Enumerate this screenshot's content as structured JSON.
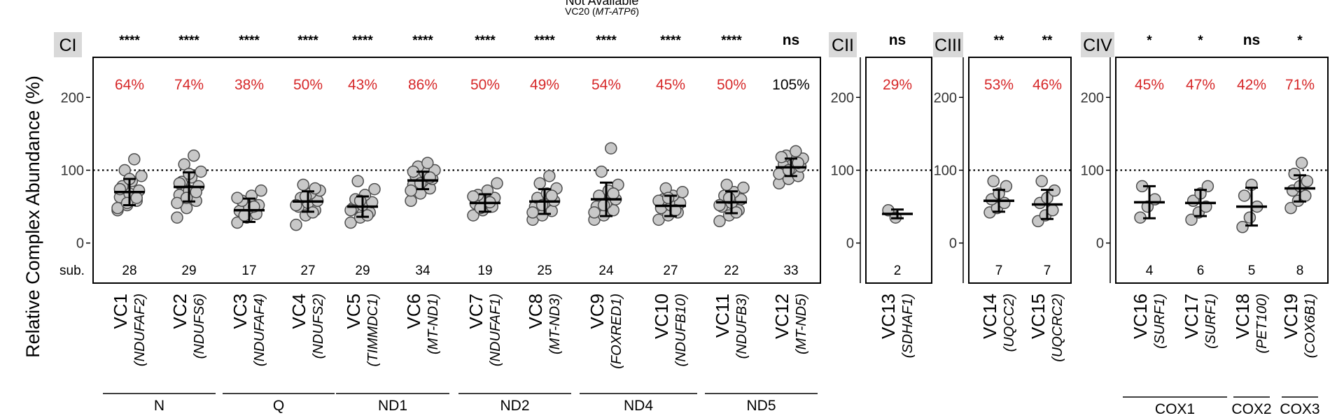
{
  "header": {
    "not_available_title": "Not Available",
    "not_available_subunit": "VC20",
    "not_available_gene": "MT-ATP6"
  },
  "chart_data": {
    "type": "scatter",
    "ylabel": "Relative Complex Abundance (%)",
    "yticks": [
      0,
      100,
      200
    ],
    "reference_line": 100,
    "row_label": "sub.",
    "colors": {
      "point_fill": "#c8c8c8",
      "point_stroke": "#4d4d4d",
      "percent_significant": "#d62728",
      "percent_normal": "#000000",
      "panel_label_bg": "#d9d9d9",
      "reference_line": "#000000"
    },
    "panels": [
      {
        "label": "CI",
        "ylim": [
          -55,
          255
        ],
        "subunits": [
          {
            "name": "VC1",
            "gene": "(NDUFAF2)",
            "sig": "****",
            "pct": "64%",
            "n": "28",
            "mean": 70,
            "sd": 18,
            "values": [
              45,
              52,
              58,
              63,
              68,
              72,
              78,
              85,
              92,
              100,
              115,
              48,
              55,
              62,
              74,
              88
            ]
          },
          {
            "name": "VC2",
            "gene": "(NDUFS6)",
            "sig": "****",
            "pct": "74%",
            "n": "29",
            "mean": 77,
            "sd": 20,
            "values": [
              35,
              48,
              58,
              66,
              72,
              78,
              84,
              90,
              98,
              108,
              120,
              55,
              62,
              70,
              82,
              95
            ]
          },
          {
            "name": "VC3",
            "gene": "(NDUFAF4)",
            "sig": "****",
            "pct": "38%",
            "n": "17",
            "mean": 45,
            "sd": 16,
            "values": [
              28,
              35,
              40,
              44,
              48,
              52,
              58,
              65,
              72,
              38,
              50,
              62
            ]
          },
          {
            "name": "VC4",
            "gene": "(NDUFS2)",
            "sig": "****",
            "pct": "50%",
            "n": "27",
            "mean": 57,
            "sd": 14,
            "values": [
              25,
              38,
              45,
              50,
              55,
              58,
              62,
              68,
              72,
              80,
              42,
              52,
              64,
              75
            ]
          },
          {
            "name": "VC5",
            "gene": "(TIMMDC1)",
            "sig": "****",
            "pct": "43%",
            "n": "29",
            "mean": 50,
            "sd": 14,
            "values": [
              28,
              35,
              42,
              48,
              52,
              56,
              60,
              66,
              74,
              85,
              38,
              45,
              58
            ]
          },
          {
            "name": "VC6",
            "gene": "(MT-ND1)",
            "sig": "****",
            "pct": "86%",
            "n": "34",
            "mean": 86,
            "sd": 12,
            "values": [
              58,
              68,
              75,
              80,
              85,
              88,
              92,
              96,
              100,
              105,
              110,
              72,
              82,
              90,
              98
            ]
          },
          {
            "name": "VC7",
            "gene": "(NDUFAF1)",
            "sig": "****",
            "pct": "50%",
            "n": "19",
            "mean": 55,
            "sd": 12,
            "values": [
              38,
              45,
              50,
              54,
              58,
              62,
              66,
              72,
              82,
              48,
              56,
              64
            ]
          },
          {
            "name": "VC8",
            "gene": "(MT-ND3)",
            "sig": "****",
            "pct": "49%",
            "n": "25",
            "mean": 57,
            "sd": 17,
            "values": [
              32,
              38,
              44,
              50,
              55,
              58,
              62,
              68,
              75,
              82,
              92,
              42,
              52,
              65
            ]
          },
          {
            "name": "VC9",
            "gene": "(FOXRED1)",
            "sig": "****",
            "pct": "54%",
            "n": "24",
            "mean": 60,
            "sd": 23,
            "values": [
              32,
              38,
              45,
              50,
              55,
              60,
              65,
              72,
              80,
              98,
              130,
              42,
              52,
              68
            ]
          },
          {
            "name": "VC10",
            "gene": "(NDUFB10)",
            "sig": "****",
            "pct": "45%",
            "n": "27",
            "mean": 51,
            "sd": 14,
            "values": [
              32,
              38,
              42,
              48,
              52,
              55,
              60,
              65,
              70,
              75,
              45,
              58,
              62
            ]
          },
          {
            "name": "VC11",
            "gene": "(NDUFB3)",
            "sig": "****",
            "pct": "50%",
            "n": "22",
            "mean": 56,
            "sd": 15,
            "values": [
              30,
              38,
              45,
              50,
              55,
              60,
              65,
              70,
              76,
              80,
              42,
              52,
              62
            ]
          },
          {
            "name": "VC12",
            "gene": "(MT-ND5)",
            "sig": "ns",
            "pct": "105%",
            "n": "33",
            "mean": 104,
            "sd": 12,
            "values": [
              82,
              88,
              92,
              98,
              102,
              105,
              108,
              112,
              116,
              120,
              126,
              95,
              100,
              110,
              118
            ]
          }
        ],
        "groups": [
          {
            "label": "N",
            "from": 0,
            "to": 1
          },
          {
            "label": "Q",
            "from": 2,
            "to": 3
          },
          {
            "label": "ND1",
            "from": 4,
            "to": 5
          },
          {
            "label": "ND2",
            "from": 6,
            "to": 7
          },
          {
            "label": "ND4",
            "from": 8,
            "to": 9
          },
          {
            "label": "ND5",
            "from": 10,
            "to": 11
          }
        ]
      },
      {
        "label": "CII",
        "ylim": [
          -55,
          255
        ],
        "subunits": [
          {
            "name": "VC13",
            "gene": "(SDHAF1)",
            "sig": "ns",
            "pct": "29%",
            "n": "2",
            "mean": 40,
            "sd": 6,
            "values": [
              45,
              35
            ]
          }
        ],
        "groups": []
      },
      {
        "label": "CIII",
        "ylim": [
          -55,
          255
        ],
        "subunits": [
          {
            "name": "VC14",
            "gene": "(UQCC2)",
            "sig": "**",
            "pct": "53%",
            "n": "7",
            "mean": 58,
            "sd": 15,
            "values": [
              42,
              48,
              55,
              60,
              68,
              78,
              85
            ]
          },
          {
            "name": "VC15",
            "gene": "(UQCRC2)",
            "sig": "**",
            "pct": "46%",
            "n": "7",
            "mean": 53,
            "sd": 20,
            "values": [
              30,
              38,
              45,
              55,
              62,
              72,
              85
            ]
          }
        ],
        "groups": []
      },
      {
        "label": "CIV",
        "ylim": [
          -55,
          255
        ],
        "subunits": [
          {
            "name": "VC16",
            "gene": "(SURF1)",
            "sig": "*",
            "pct": "45%",
            "n": "4",
            "mean": 56,
            "sd": 22,
            "values": [
              35,
              50,
              60,
              78
            ]
          },
          {
            "name": "VC17",
            "gene": "(SURF1)",
            "sig": "*",
            "pct": "47%",
            "n": "6",
            "mean": 55,
            "sd": 18,
            "values": [
              32,
              42,
              50,
              58,
              68,
              78
            ]
          },
          {
            "name": "VC18",
            "gene": "(PET100)",
            "sig": "ns",
            "pct": "42%",
            "n": "5",
            "mean": 50,
            "sd": 26,
            "values": [
              22,
              35,
              50,
              65,
              80
            ]
          },
          {
            "name": "VC19",
            "gene": "(COX6B1)",
            "sig": "*",
            "pct": "71%",
            "n": "8",
            "mean": 75,
            "sd": 18,
            "values": [
              48,
              58,
              65,
              72,
              78,
              85,
              95,
              110
            ]
          }
        ],
        "groups": [
          {
            "label": "COX1",
            "from": 0,
            "to": 1
          },
          {
            "label": "COX2",
            "from": 2,
            "to": 2
          },
          {
            "label": "COX3",
            "from": 3,
            "to": 3
          }
        ]
      }
    ]
  }
}
